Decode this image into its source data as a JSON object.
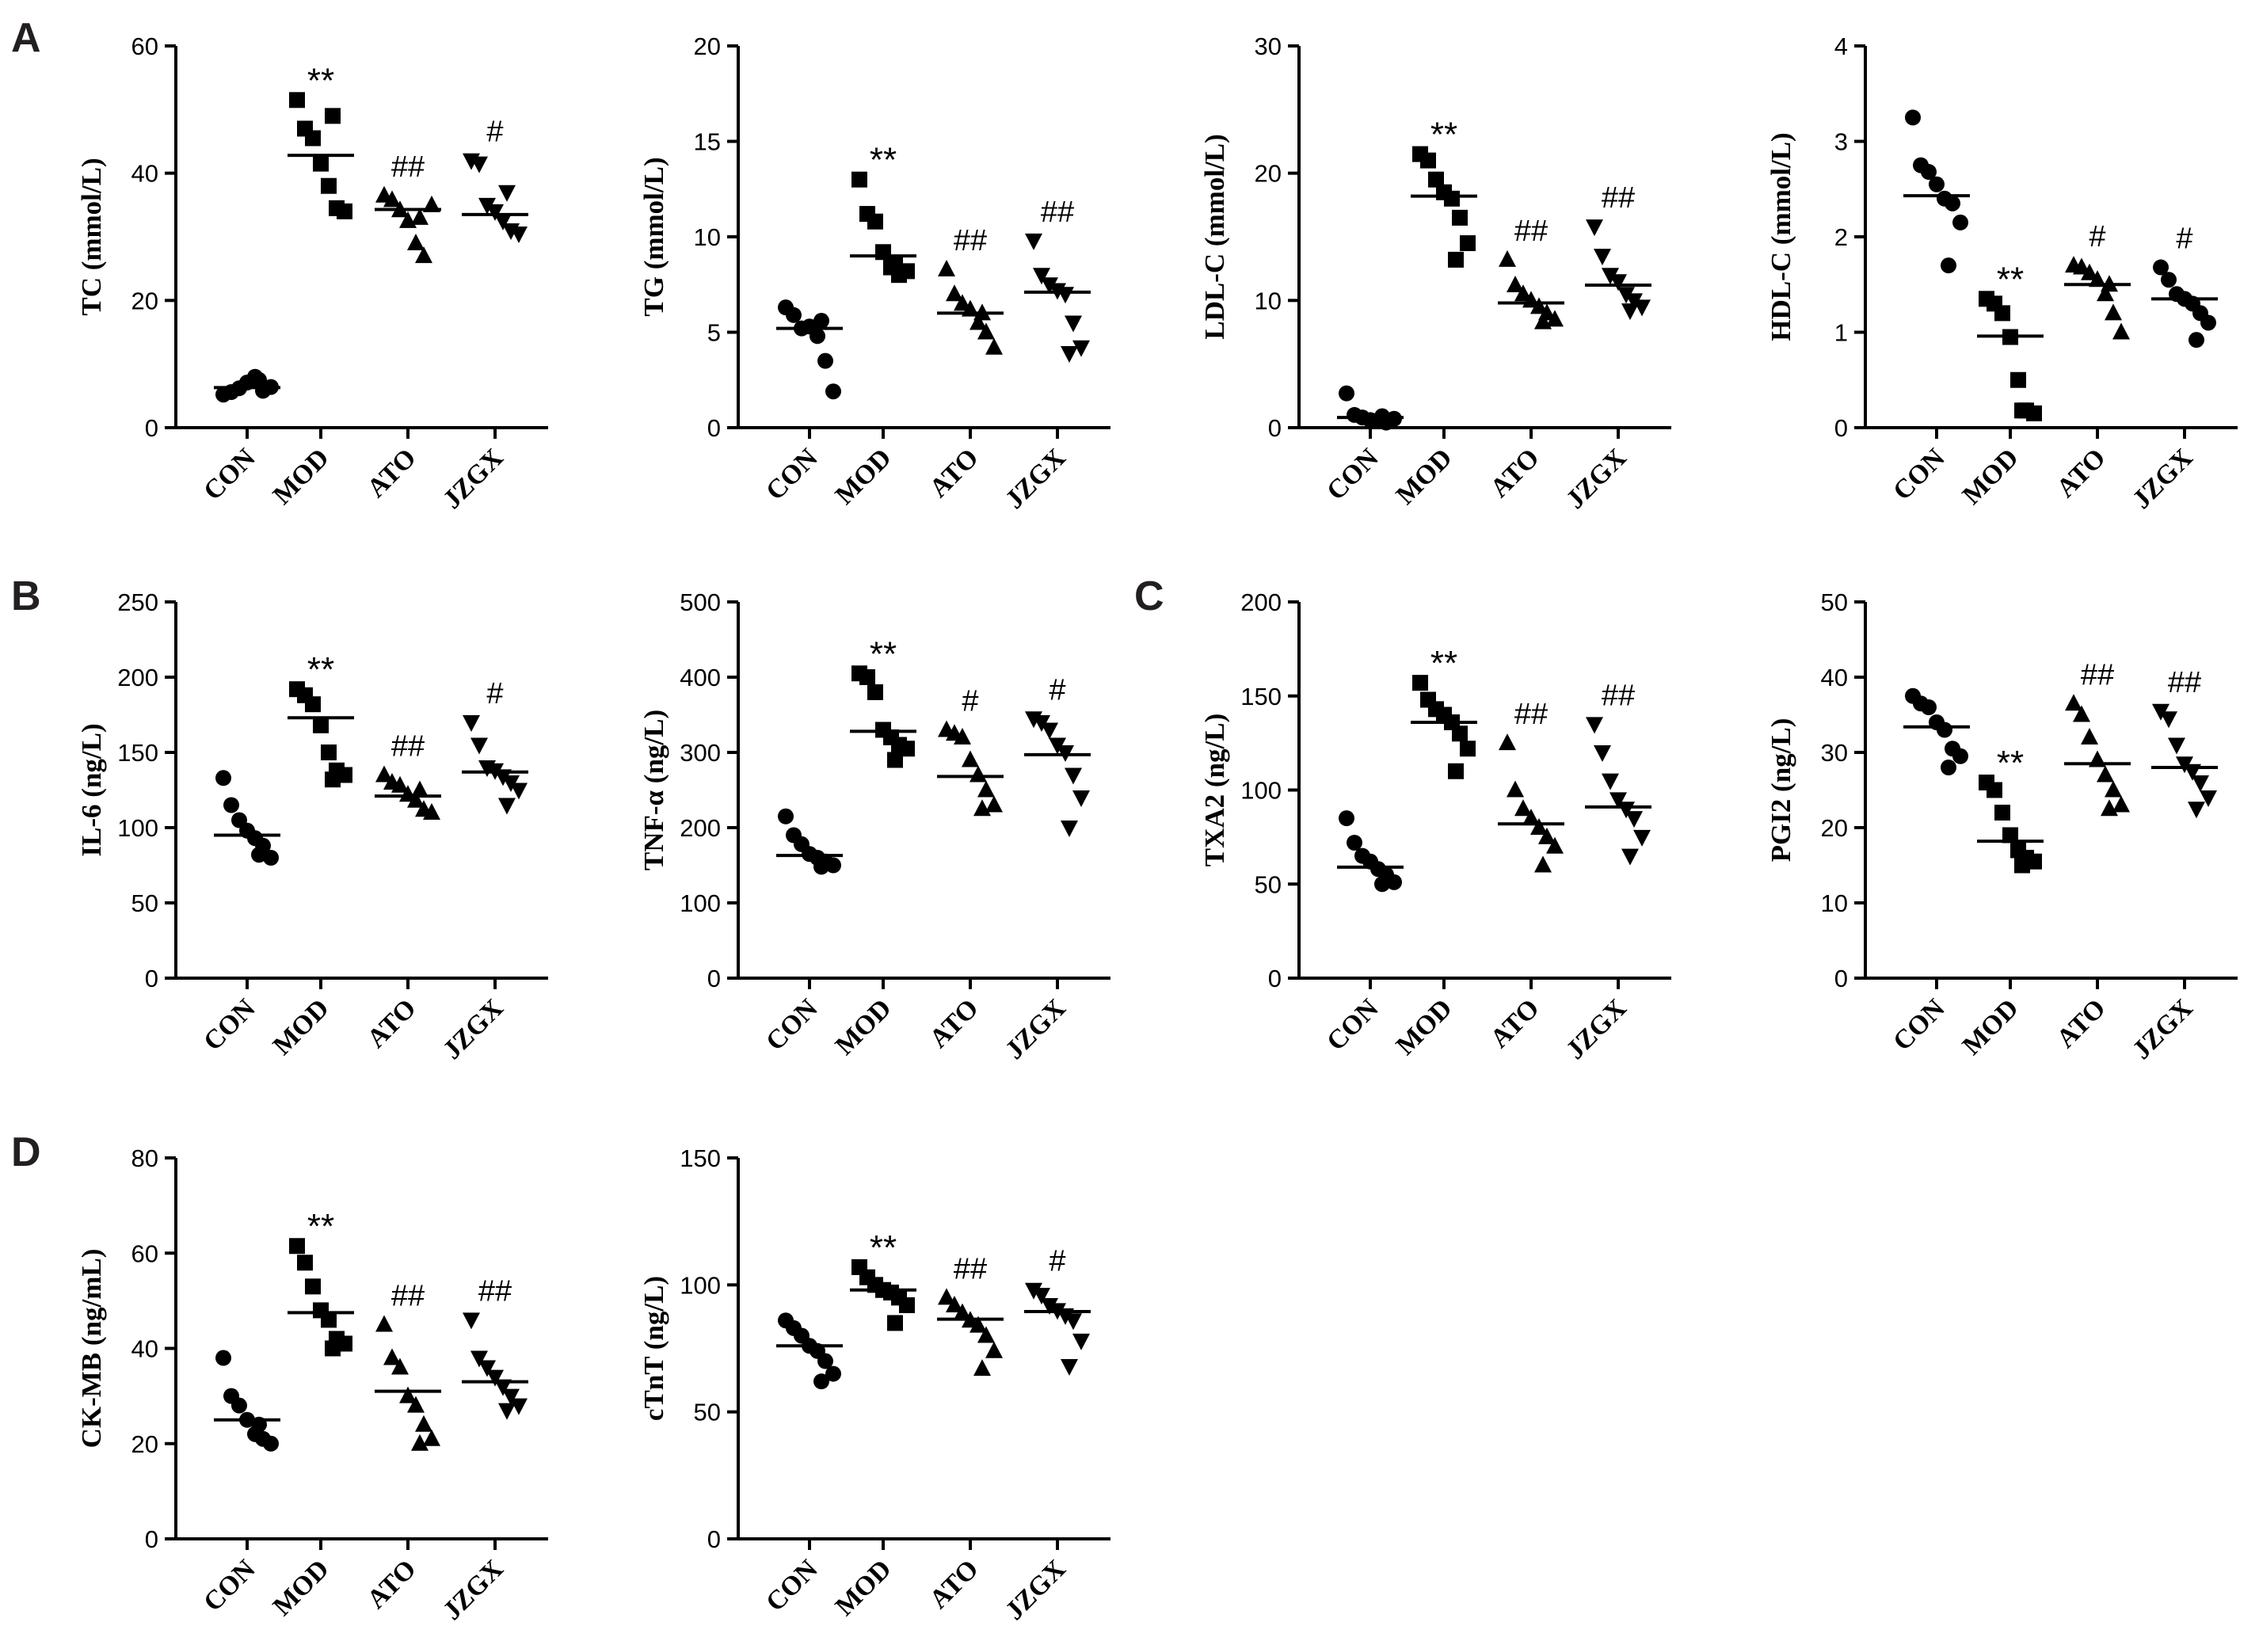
{
  "panel_letters": [
    "A",
    "B",
    "C",
    "D"
  ],
  "chart_data": [
    {
      "type": "scatter",
      "panel": "A",
      "ylabel": "TC (mmol/L)",
      "ylim": [
        0,
        60
      ],
      "yticks": [
        0,
        20,
        40,
        60
      ],
      "categories": [
        "CON",
        "MOD",
        "ATO",
        "JZGX"
      ],
      "groups": [
        {
          "name": "CON",
          "marker": "circle",
          "mean": 6.3,
          "values": [
            5.2,
            5.6,
            6.2,
            7.1,
            8.0,
            5.8,
            6.4,
            7.5
          ],
          "sig": ""
        },
        {
          "name": "MOD",
          "marker": "square",
          "mean": 42.8,
          "values": [
            51.5,
            47.0,
            45.5,
            41.5,
            38.0,
            34.5,
            34.0,
            49.0
          ],
          "sig": "**"
        },
        {
          "name": "ATO",
          "marker": "triangle-up",
          "mean": 34.3,
          "values": [
            36.5,
            35.8,
            34.2,
            32.5,
            29.0,
            27.0,
            35.0,
            33.0
          ],
          "sig": "##"
        },
        {
          "name": "JZGX",
          "marker": "triangle-down",
          "mean": 33.5,
          "values": [
            42.0,
            41.5,
            35.0,
            34.0,
            32.5,
            31.0,
            30.5,
            37.0
          ],
          "sig": "#"
        }
      ]
    },
    {
      "type": "scatter",
      "panel": "",
      "ylabel": "TG (mmol/L)",
      "ylim": [
        0,
        20
      ],
      "yticks": [
        0,
        5,
        10,
        15,
        20
      ],
      "categories": [
        "CON",
        "MOD",
        "ATO",
        "JZGX"
      ],
      "groups": [
        {
          "name": "CON",
          "marker": "circle",
          "mean": 5.2,
          "values": [
            6.3,
            5.9,
            5.2,
            5.3,
            4.8,
            3.5,
            1.9,
            5.6
          ],
          "sig": ""
        },
        {
          "name": "MOD",
          "marker": "square",
          "mean": 9.0,
          "values": [
            13.0,
            11.2,
            10.8,
            9.2,
            8.4,
            8.0,
            8.2,
            8.6
          ],
          "sig": "**"
        },
        {
          "name": "ATO",
          "marker": "triangle-up",
          "mean": 6.0,
          "values": [
            8.3,
            7.0,
            6.5,
            6.2,
            5.5,
            5.0,
            4.2,
            6.0
          ],
          "sig": "##"
        },
        {
          "name": "JZGX",
          "marker": "triangle-down",
          "mean": 7.1,
          "values": [
            9.8,
            8.0,
            7.5,
            7.2,
            7.0,
            5.5,
            4.2,
            3.9
          ],
          "sig": "##"
        }
      ]
    },
    {
      "type": "scatter",
      "panel": "",
      "ylabel": "LDL-C (mmol/L)",
      "ylim": [
        0,
        30
      ],
      "yticks": [
        0,
        10,
        20,
        30
      ],
      "categories": [
        "CON",
        "MOD",
        "ATO",
        "JZGX"
      ],
      "groups": [
        {
          "name": "CON",
          "marker": "circle",
          "mean": 0.8,
          "values": [
            2.7,
            1.0,
            0.8,
            0.6,
            0.5,
            0.4,
            0.7,
            0.9
          ],
          "sig": ""
        },
        {
          "name": "MOD",
          "marker": "square",
          "mean": 18.2,
          "values": [
            21.5,
            21.0,
            19.5,
            18.5,
            18.0,
            16.5,
            14.5,
            13.2
          ],
          "sig": "**"
        },
        {
          "name": "ATO",
          "marker": "triangle-up",
          "mean": 9.8,
          "values": [
            13.2,
            11.2,
            10.5,
            10.0,
            9.5,
            9.0,
            8.5,
            8.3
          ],
          "sig": "##"
        },
        {
          "name": "JZGX",
          "marker": "triangle-down",
          "mean": 11.2,
          "values": [
            15.8,
            13.5,
            12.0,
            11.5,
            10.5,
            10.0,
            9.5,
            9.2
          ],
          "sig": "##"
        }
      ]
    },
    {
      "type": "scatter",
      "panel": "",
      "ylabel": "HDL-C (mmol/L)",
      "ylim": [
        0,
        4
      ],
      "yticks": [
        0,
        1,
        2,
        3,
        4
      ],
      "categories": [
        "CON",
        "MOD",
        "ATO",
        "JZGX"
      ],
      "groups": [
        {
          "name": "CON",
          "marker": "circle",
          "mean": 2.43,
          "values": [
            3.25,
            2.75,
            2.68,
            2.55,
            2.4,
            2.35,
            2.15,
            1.7
          ],
          "sig": ""
        },
        {
          "name": "MOD",
          "marker": "square",
          "mean": 0.96,
          "values": [
            1.35,
            1.3,
            1.2,
            0.95,
            0.5,
            0.18,
            0.15,
            0.18
          ],
          "sig": "**"
        },
        {
          "name": "ATO",
          "marker": "triangle-up",
          "mean": 1.5,
          "values": [
            1.7,
            1.68,
            1.62,
            1.55,
            1.4,
            1.2,
            1.0,
            1.5
          ],
          "sig": "#"
        },
        {
          "name": "JZGX",
          "marker": "circle",
          "mean": 1.35,
          "values": [
            1.68,
            1.55,
            1.4,
            1.35,
            1.3,
            1.2,
            1.1,
            0.92
          ],
          "sig": "#"
        }
      ]
    },
    {
      "type": "scatter",
      "panel": "B",
      "ylabel": "IL-6 (ng/L)",
      "ylim": [
        0,
        250
      ],
      "yticks": [
        0,
        50,
        100,
        150,
        200,
        250
      ],
      "categories": [
        "CON",
        "MOD",
        "ATO",
        "JZGX"
      ],
      "groups": [
        {
          "name": "CON",
          "marker": "circle",
          "mean": 95,
          "values": [
            133,
            115,
            105,
            98,
            93,
            88,
            80,
            82
          ],
          "sig": ""
        },
        {
          "name": "MOD",
          "marker": "square",
          "mean": 173,
          "values": [
            192,
            188,
            182,
            168,
            150,
            138,
            135,
            132
          ],
          "sig": "**"
        },
        {
          "name": "ATO",
          "marker": "triangle-up",
          "mean": 121,
          "values": [
            135,
            130,
            128,
            122,
            118,
            112,
            110,
            125
          ],
          "sig": "##"
        },
        {
          "name": "JZGX",
          "marker": "triangle-down",
          "mean": 137,
          "values": [
            170,
            155,
            140,
            138,
            134,
            130,
            125,
            115
          ],
          "sig": "#"
        }
      ]
    },
    {
      "type": "scatter",
      "panel": "",
      "ylabel": "TNF-α (ng/L)",
      "ylim": [
        0,
        500
      ],
      "yticks": [
        0,
        100,
        200,
        300,
        400,
        500
      ],
      "categories": [
        "CON",
        "MOD",
        "ATO",
        "JZGX"
      ],
      "groups": [
        {
          "name": "CON",
          "marker": "circle",
          "mean": 163,
          "values": [
            215,
            190,
            178,
            165,
            160,
            155,
            150,
            148
          ],
          "sig": ""
        },
        {
          "name": "MOD",
          "marker": "square",
          "mean": 328,
          "values": [
            405,
            400,
            380,
            330,
            320,
            310,
            305,
            290
          ],
          "sig": "**"
        },
        {
          "name": "ATO",
          "marker": "triangle-up",
          "mean": 268,
          "values": [
            330,
            325,
            320,
            290,
            270,
            250,
            230,
            225
          ],
          "sig": "#"
        },
        {
          "name": "JZGX",
          "marker": "triangle-down",
          "mean": 297,
          "values": [
            345,
            340,
            330,
            310,
            300,
            270,
            240,
            200
          ],
          "sig": "#"
        }
      ]
    },
    {
      "type": "scatter",
      "panel": "C",
      "ylabel": "TXA2 (ng/L)",
      "ylim": [
        0,
        200
      ],
      "yticks": [
        0,
        50,
        100,
        150,
        200
      ],
      "categories": [
        "CON",
        "MOD",
        "ATO",
        "JZGX"
      ],
      "groups": [
        {
          "name": "CON",
          "marker": "circle",
          "mean": 59,
          "values": [
            85,
            72,
            65,
            62,
            58,
            55,
            51,
            50
          ],
          "sig": ""
        },
        {
          "name": "MOD",
          "marker": "square",
          "mean": 136,
          "values": [
            157,
            148,
            143,
            140,
            136,
            130,
            122,
            110
          ],
          "sig": "**"
        },
        {
          "name": "ATO",
          "marker": "triangle-up",
          "mean": 82,
          "values": [
            125,
            100,
            90,
            85,
            80,
            75,
            70,
            60
          ],
          "sig": "##"
        },
        {
          "name": "JZGX",
          "marker": "triangle-down",
          "mean": 91,
          "values": [
            135,
            120,
            105,
            95,
            90,
            85,
            75,
            65
          ],
          "sig": "##"
        }
      ]
    },
    {
      "type": "scatter",
      "panel": "",
      "ylabel": "PGI2 (ng/L)",
      "ylim": [
        0,
        50
      ],
      "yticks": [
        0,
        10,
        20,
        30,
        40,
        50
      ],
      "categories": [
        "CON",
        "MOD",
        "ATO",
        "JZGX"
      ],
      "groups": [
        {
          "name": "CON",
          "marker": "circle",
          "mean": 33.4,
          "values": [
            37.5,
            36.5,
            36.0,
            34.0,
            33.0,
            30.5,
            29.5,
            28.0
          ],
          "sig": ""
        },
        {
          "name": "MOD",
          "marker": "square",
          "mean": 18.2,
          "values": [
            26.0,
            25.0,
            22.0,
            19.0,
            17.0,
            16.0,
            15.5,
            15.0
          ],
          "sig": "**"
        },
        {
          "name": "ATO",
          "marker": "triangle-up",
          "mean": 28.5,
          "values": [
            36.5,
            35.0,
            32.0,
            29.0,
            27.0,
            25.0,
            23.0,
            22.5
          ],
          "sig": "##"
        },
        {
          "name": "JZGX",
          "marker": "triangle-down",
          "mean": 28.0,
          "values": [
            35.5,
            34.5,
            31.0,
            28.5,
            27.5,
            26.0,
            24.0,
            22.5
          ],
          "sig": "##"
        }
      ]
    },
    {
      "type": "scatter",
      "panel": "D",
      "ylabel": "CK-MB (ng/mL)",
      "ylim": [
        0,
        80
      ],
      "yticks": [
        0,
        20,
        40,
        60,
        80
      ],
      "categories": [
        "CON",
        "MOD",
        "ATO",
        "JZGX"
      ],
      "groups": [
        {
          "name": "CON",
          "marker": "circle",
          "mean": 25,
          "values": [
            38,
            30,
            28,
            25,
            22,
            21,
            20,
            24
          ],
          "sig": ""
        },
        {
          "name": "MOD",
          "marker": "square",
          "mean": 47.5,
          "values": [
            61.5,
            58,
            53,
            48,
            46,
            42,
            41,
            40
          ],
          "sig": "**"
        },
        {
          "name": "ATO",
          "marker": "triangle-up",
          "mean": 31,
          "values": [
            45,
            38,
            36,
            30,
            28,
            24,
            21,
            20
          ],
          "sig": "##"
        },
        {
          "name": "JZGX",
          "marker": "triangle-down",
          "mean": 33,
          "values": [
            46,
            38,
            36,
            34,
            32,
            30,
            28,
            27
          ],
          "sig": "##"
        }
      ]
    },
    {
      "type": "scatter",
      "panel": "",
      "ylabel": "cTnT (ng/L)",
      "ylim": [
        0,
        150
      ],
      "yticks": [
        0,
        50,
        100,
        150
      ],
      "categories": [
        "CON",
        "MOD",
        "ATO",
        "JZGX"
      ],
      "groups": [
        {
          "name": "CON",
          "marker": "circle",
          "mean": 76,
          "values": [
            86,
            83,
            80,
            76,
            74,
            70,
            65,
            62
          ],
          "sig": ""
        },
        {
          "name": "MOD",
          "marker": "square",
          "mean": 98,
          "values": [
            107,
            103,
            100,
            98,
            97,
            95,
            92,
            85
          ],
          "sig": "**"
        },
        {
          "name": "ATO",
          "marker": "triangle-up",
          "mean": 86.5,
          "values": [
            95,
            92,
            89,
            86,
            84,
            80,
            74,
            67
          ],
          "sig": "##"
        },
        {
          "name": "JZGX",
          "marker": "triangle-down",
          "mean": 89.5,
          "values": [
            98,
            96,
            92,
            90,
            88,
            86,
            78,
            68
          ],
          "sig": "#"
        }
      ]
    }
  ]
}
